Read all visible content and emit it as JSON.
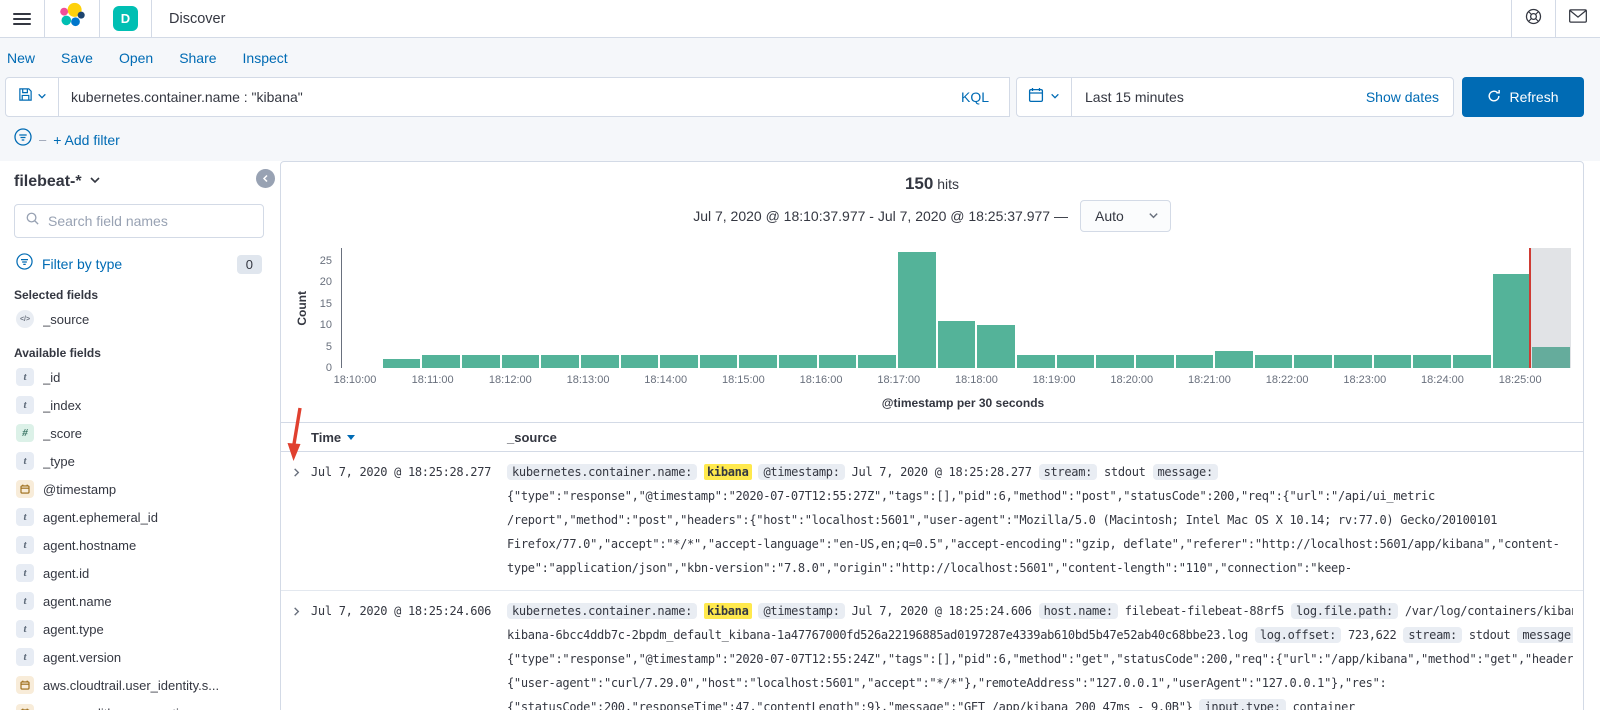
{
  "colors": {
    "accent": "#006bb4",
    "bar": "#54b399",
    "highlight": "#ffe94d",
    "badge_bg": "#e9edf3",
    "time_marker": "#cf3b34",
    "space_badge": "#00bfb3"
  },
  "icons": {
    "menu": "hamburger",
    "logo": "elastic-logo",
    "help": "life-buoy",
    "mail": "envelope",
    "save_query": "floppy-disk",
    "calendar": "calendar",
    "refresh": "refresh-arrow",
    "search": "magnifier",
    "filter": "filter-circle",
    "collapse": "chevron-left-circle",
    "expand_row": "chevron-right",
    "sort": "triangle-down",
    "dropdown": "chevron-down"
  },
  "topbar": {
    "space_badge": "D",
    "title": "Discover"
  },
  "header": {
    "nav": [
      "New",
      "Save",
      "Open",
      "Share",
      "Inspect"
    ]
  },
  "querybar": {
    "query": "kubernetes.container.name : \"kibana\"",
    "language_label": "KQL",
    "time_range": "Last 15 minutes",
    "show_dates_label": "Show dates",
    "refresh_label": "Refresh"
  },
  "filterbar": {
    "dash": "–",
    "add_filter_label": "+ Add filter"
  },
  "sidebar": {
    "index_pattern": "filebeat-*",
    "search_placeholder": "Search field names",
    "filter_by_type_label": "Filter by type",
    "filter_count": "0",
    "selected_fields_label": "Selected fields",
    "selected_fields": [
      {
        "name": "_source",
        "type": "source"
      }
    ],
    "available_fields_label": "Available fields",
    "available_fields": [
      {
        "name": "_id",
        "type": "string"
      },
      {
        "name": "_index",
        "type": "string"
      },
      {
        "name": "_score",
        "type": "number"
      },
      {
        "name": "_type",
        "type": "string"
      },
      {
        "name": "@timestamp",
        "type": "date"
      },
      {
        "name": "agent.ephemeral_id",
        "type": "string"
      },
      {
        "name": "agent.hostname",
        "type": "string"
      },
      {
        "name": "agent.id",
        "type": "string"
      },
      {
        "name": "agent.name",
        "type": "string"
      },
      {
        "name": "agent.type",
        "type": "string"
      },
      {
        "name": "agent.version",
        "type": "string"
      },
      {
        "name": "aws.cloudtrail.user_identity.s...",
        "type": "date"
      },
      {
        "name": "azure.auditlogs.properties.ac...",
        "type": "date"
      }
    ]
  },
  "results": {
    "hits_count": "150",
    "hits_label": "hits",
    "time_range_display": "Jul 7, 2020 @ 18:10:37.977 - Jul 7, 2020 @ 18:25:37.977 —",
    "interval_label": "Auto"
  },
  "chart_data": {
    "type": "bar",
    "xlabel": "@timestamp per 30 seconds",
    "ylabel": "Count",
    "ylim": [
      0,
      28
    ],
    "yticks": [
      0,
      5,
      10,
      15,
      20,
      25
    ],
    "x_start": "18:10:00",
    "x_end": "18:25:30",
    "bucket_seconds": 30,
    "x_tick_labels": [
      "18:10:00",
      "18:11:00",
      "18:12:00",
      "18:13:00",
      "18:14:00",
      "18:15:00",
      "18:16:00",
      "18:17:00",
      "18:18:00",
      "18:19:00",
      "18:20:00",
      "18:21:00",
      "18:22:00",
      "18:23:00",
      "18:24:00",
      "18:25:00"
    ],
    "bars": [
      {
        "x": "18:10:30",
        "y": 2
      },
      {
        "x": "18:11:00",
        "y": 3
      },
      {
        "x": "18:11:30",
        "y": 3
      },
      {
        "x": "18:12:00",
        "y": 3
      },
      {
        "x": "18:12:30",
        "y": 3
      },
      {
        "x": "18:13:00",
        "y": 3
      },
      {
        "x": "18:13:30",
        "y": 3
      },
      {
        "x": "18:14:00",
        "y": 3
      },
      {
        "x": "18:14:30",
        "y": 3
      },
      {
        "x": "18:15:00",
        "y": 3
      },
      {
        "x": "18:15:30",
        "y": 3
      },
      {
        "x": "18:16:00",
        "y": 3
      },
      {
        "x": "18:16:30",
        "y": 3
      },
      {
        "x": "18:17:00",
        "y": 27
      },
      {
        "x": "18:17:30",
        "y": 11
      },
      {
        "x": "18:18:00",
        "y": 10
      },
      {
        "x": "18:18:30",
        "y": 3
      },
      {
        "x": "18:19:00",
        "y": 3
      },
      {
        "x": "18:19:30",
        "y": 3
      },
      {
        "x": "18:20:00",
        "y": 3
      },
      {
        "x": "18:20:30",
        "y": 3
      },
      {
        "x": "18:21:00",
        "y": 4
      },
      {
        "x": "18:21:30",
        "y": 3
      },
      {
        "x": "18:22:00",
        "y": 3
      },
      {
        "x": "18:22:30",
        "y": 3
      },
      {
        "x": "18:23:00",
        "y": 3
      },
      {
        "x": "18:23:30",
        "y": 3
      },
      {
        "x": "18:24:00",
        "y": 3
      },
      {
        "x": "18:24:30",
        "y": 22
      },
      {
        "x": "18:25:00",
        "y": 5
      }
    ],
    "annotations": {
      "now_line_x": "18:24:58",
      "future_zone_from": "18:24:58"
    }
  },
  "table": {
    "columns": [
      "Time",
      "_source"
    ],
    "rows": [
      {
        "time": "Jul 7, 2020 @ 18:25:28.277",
        "source_lines": [
          [
            {
              "k": "f",
              "v": "kubernetes.container.name:"
            },
            {
              "k": "hl",
              "v": "kibana"
            },
            {
              "k": "f",
              "v": "@timestamp:"
            },
            {
              "k": "t",
              "v": "Jul 7, 2020 @ 18:25:28.277"
            },
            {
              "k": "f",
              "v": "stream:"
            },
            {
              "k": "t",
              "v": "stdout"
            },
            {
              "k": "f",
              "v": "message:"
            }
          ],
          [
            {
              "k": "t",
              "v": "{\"type\":\"response\",\"@timestamp\":\"2020-07-07T12:55:27Z\",\"tags\":[],\"pid\":6,\"method\":\"post\",\"statusCode\":200,\"req\":{\"url\":\"/api/ui_metric"
            }
          ],
          [
            {
              "k": "t",
              "v": "/report\",\"method\":\"post\",\"headers\":{\"host\":\"localhost:5601\",\"user-agent\":\"Mozilla/5.0 (Macintosh; Intel Mac OS X 10.14; rv:77.0) Gecko/20100101"
            }
          ],
          [
            {
              "k": "t",
              "v": "Firefox/77.0\",\"accept\":\"*/*\",\"accept-language\":\"en-US,en;q=0.5\",\"accept-encoding\":\"gzip, deflate\",\"referer\":\"http://localhost:5601/app/kibana\",\"content-"
            }
          ],
          [
            {
              "k": "t",
              "v": "type\":\"application/json\",\"kbn-version\":\"7.8.0\",\"origin\":\"http://localhost:5601\",\"content-length\":\"110\",\"connection\":\"keep-"
            }
          ]
        ]
      },
      {
        "time": "Jul 7, 2020 @ 18:25:24.606",
        "source_lines": [
          [
            {
              "k": "f",
              "v": "kubernetes.container.name:"
            },
            {
              "k": "hl",
              "v": "kibana"
            },
            {
              "k": "f",
              "v": "@timestamp:"
            },
            {
              "k": "t",
              "v": "Jul 7, 2020 @ 18:25:24.606"
            },
            {
              "k": "f",
              "v": "host.name:"
            },
            {
              "k": "t",
              "v": "filebeat-filebeat-88rf5"
            },
            {
              "k": "f",
              "v": "log.file.path:"
            },
            {
              "k": "t",
              "v": "/var/log/containers/kibana-"
            }
          ],
          [
            {
              "k": "t",
              "v": "kibana-6bcc4ddb7c-2bpdm_default_kibana-1a47767000fd526a22196885ad0197287e4339ab610bd5b47e52ab40c68bbe23.log"
            },
            {
              "k": "f",
              "v": "log.offset:"
            },
            {
              "k": "t",
              "v": "723,622"
            },
            {
              "k": "f",
              "v": "stream:"
            },
            {
              "k": "t",
              "v": "stdout"
            },
            {
              "k": "f",
              "v": "message:"
            }
          ],
          [
            {
              "k": "t",
              "v": "{\"type\":\"response\",\"@timestamp\":\"2020-07-07T12:55:24Z\",\"tags\":[],\"pid\":6,\"method\":\"get\",\"statusCode\":200,\"req\":{\"url\":\"/app/kibana\",\"method\":\"get\",\"headers\":"
            }
          ],
          [
            {
              "k": "t",
              "v": "{\"user-agent\":\"curl/7.29.0\",\"host\":\"localhost:5601\",\"accept\":\"*/*\"},\"remoteAddress\":\"127.0.0.1\",\"userAgent\":\"127.0.0.1\"},\"res\":"
            }
          ],
          [
            {
              "k": "t",
              "v": "{\"statusCode\":200,\"responseTime\":47,\"contentLength\":9},\"message\":\"GET /app/kibana 200 47ms - 9.0B\"}"
            },
            {
              "k": "f",
              "v": "input.type:"
            },
            {
              "k": "t",
              "v": "container"
            }
          ]
        ]
      }
    ]
  }
}
